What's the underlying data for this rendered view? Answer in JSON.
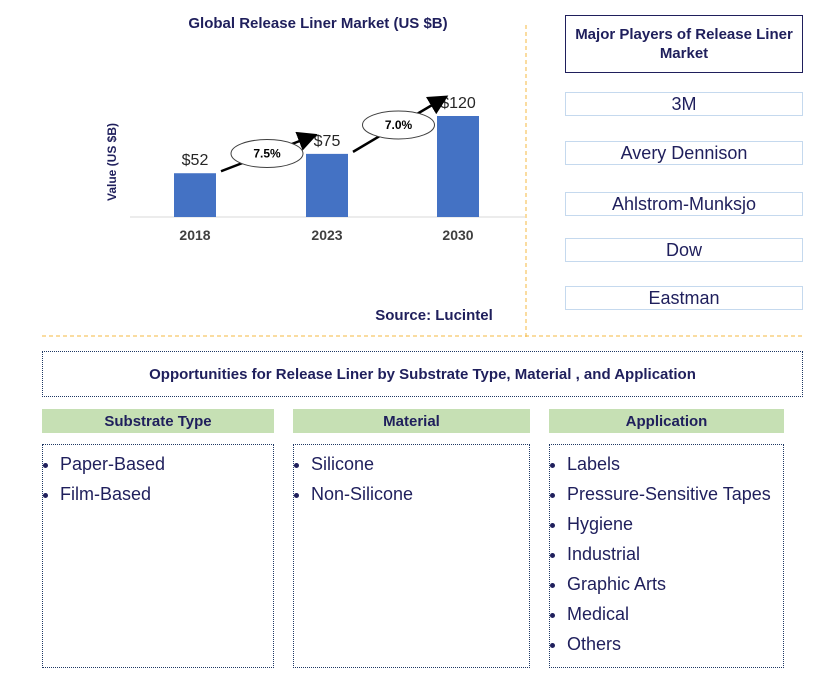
{
  "chart_data": {
    "type": "bar",
    "title": "Global Release Liner Market (US $B)",
    "y_label": "Value (US $B)",
    "categories": [
      "2018",
      "2023",
      "2030"
    ],
    "values": [
      52,
      75,
      120
    ],
    "value_labels": [
      "$52",
      "$75",
      "$120"
    ],
    "color": "#4472c4",
    "growth_labels": [
      "7.5%",
      "7.0%"
    ],
    "source": "Source: Lucintel"
  },
  "players": {
    "title": "Major Players of Release Liner Market",
    "items": [
      "3M",
      "Avery Dennison",
      "Ahlstrom-Munksjo",
      "Dow",
      "Eastman"
    ]
  },
  "opportunities": {
    "title": "Opportunities for Release Liner by Substrate Type, Material , and Application",
    "segments": [
      {
        "title": "Substrate Type",
        "items": [
          "Paper-Based",
          "Film-Based"
        ]
      },
      {
        "title": "Material",
        "items": [
          "Silicone",
          "Non-Silicone"
        ]
      },
      {
        "title": "Application",
        "items": [
          "Labels",
          "Pressure-Sensitive Tapes",
          "Hygiene",
          "Industrial",
          "Graphic Arts",
          "Medical",
          "Others"
        ]
      }
    ]
  }
}
